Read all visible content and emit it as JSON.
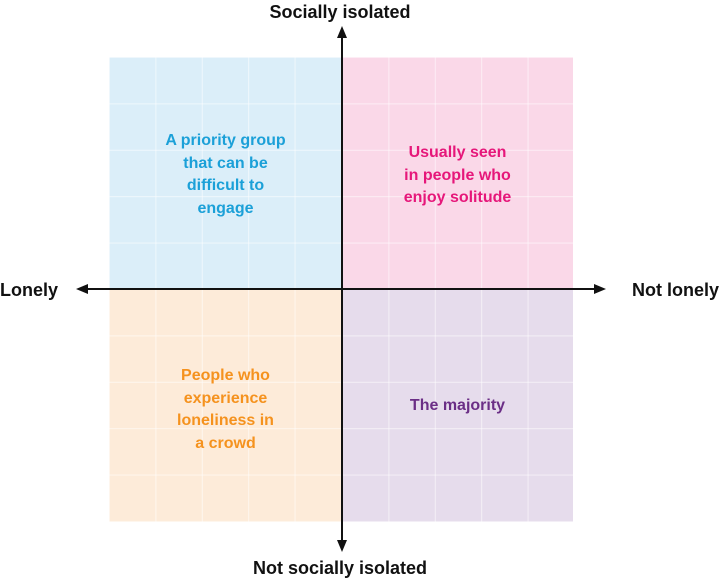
{
  "colors": {
    "top_left_fill": "#dbeef9",
    "top_right_fill": "#fad8e8",
    "bottom_left_fill": "#fdebd9",
    "bottom_right_fill": "#e6dcec",
    "top_left_text": "#1ba0d8",
    "top_right_text": "#e6177a",
    "bottom_left_text": "#f5921e",
    "bottom_right_text": "#6b2e86",
    "axis": "#111111"
  },
  "axes": {
    "top": "Socially isolated",
    "bottom": "Not socially isolated",
    "left": "Lonely",
    "right": "Not lonely"
  },
  "quadrants": {
    "top_left": "A priority group\nthat can be\ndifficult to\nengage",
    "top_right": "Usually seen\nin people who\nenjoy solitude",
    "bottom_left": "People who\nexperience\nloneliness in\na crowd",
    "bottom_right": "The majority"
  }
}
